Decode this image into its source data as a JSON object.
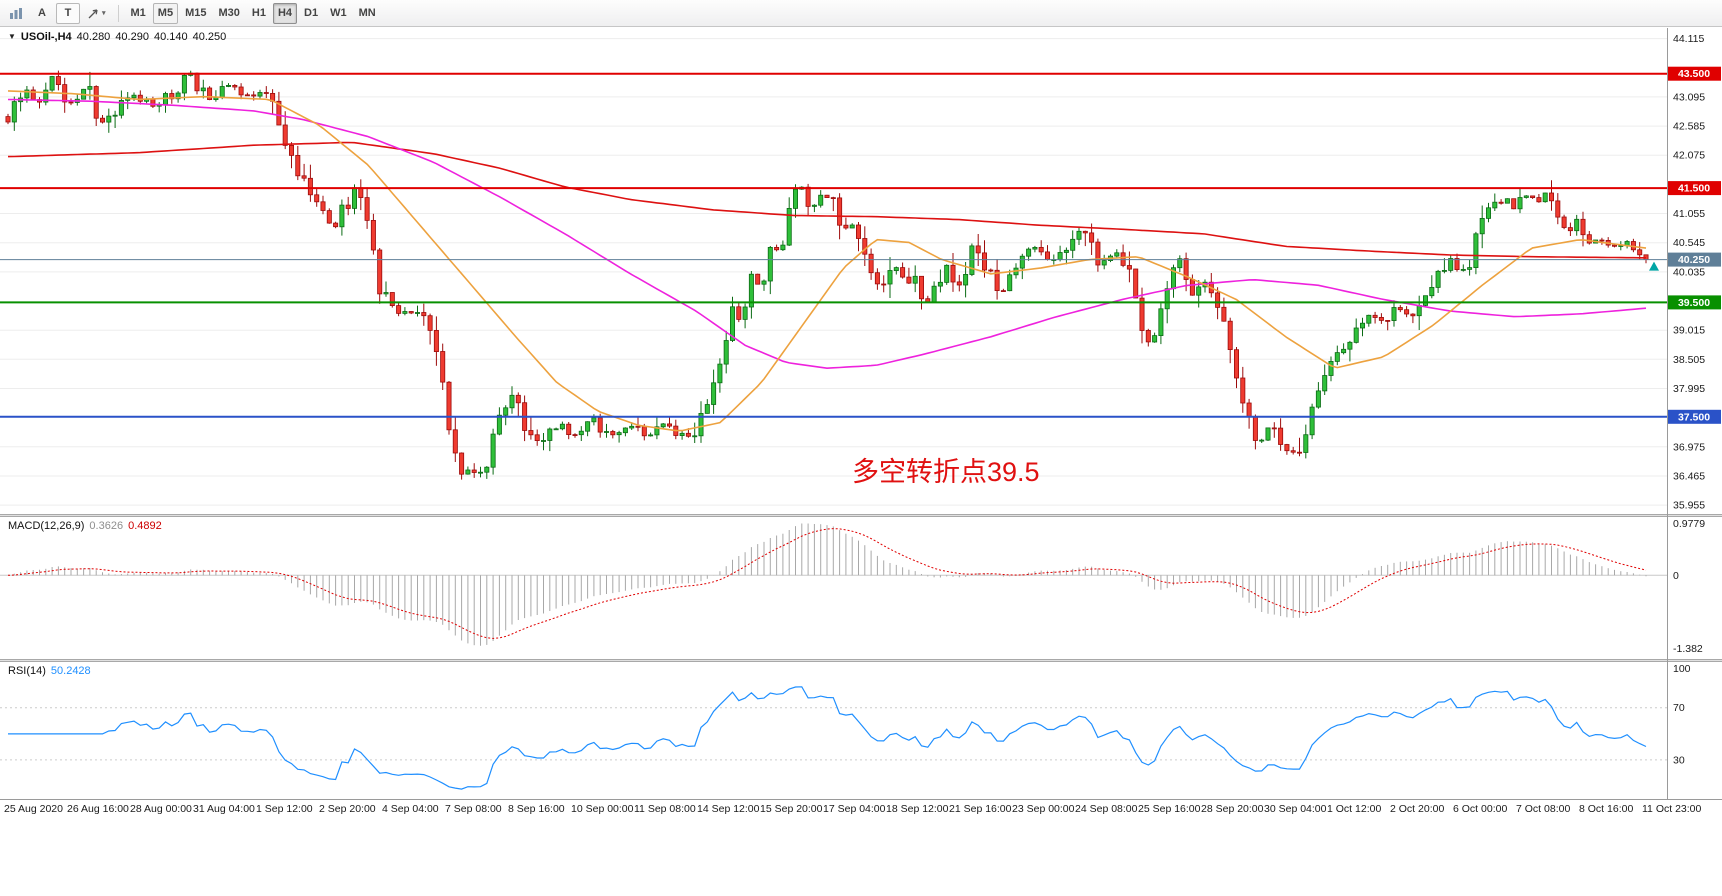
{
  "toolbar": {
    "tools": [
      {
        "name": "chart-tool",
        "label": ""
      },
      {
        "name": "arrow-tool",
        "label": "A"
      },
      {
        "name": "text-tool",
        "label": "T"
      },
      {
        "name": "objects-tool",
        "label": "",
        "caret": "▾"
      }
    ],
    "timeframes": [
      {
        "label": "M1",
        "state": "normal"
      },
      {
        "label": "M5",
        "state": "hover"
      },
      {
        "label": "M15",
        "state": "normal"
      },
      {
        "label": "M30",
        "state": "normal"
      },
      {
        "label": "H1",
        "state": "normal"
      },
      {
        "label": "H4",
        "state": "active"
      },
      {
        "label": "D1",
        "state": "normal"
      },
      {
        "label": "W1",
        "state": "normal"
      },
      {
        "label": "MN",
        "state": "normal"
      }
    ]
  },
  "main_panel": {
    "collapse_glyph": "▼",
    "symbol_period": "USOil-,H4",
    "open": "40.280",
    "high": "40.290",
    "low": "40.140",
    "close": "40.250",
    "annotation": {
      "text": "多空转折点39.5",
      "color": "#e01010",
      "t": 0.515,
      "price": 36.92,
      "font_size": 27
    }
  },
  "macd_panel": {
    "label": "MACD(12,26,9)",
    "main_value": "0.3626",
    "signal_value": "0.4892"
  },
  "rsi_panel": {
    "label": "RSI(14)",
    "value": "50.2428"
  },
  "chart_data": {
    "type": "candlestick",
    "symbol": "USOil-",
    "timeframe": "H4",
    "candles_count": 261,
    "last_price": 40.25,
    "main_ylim": [
      35.8,
      44.3
    ],
    "price_ticks": [
      44.115,
      43.095,
      42.585,
      42.075,
      41.055,
      40.545,
      40.035,
      39.015,
      38.505,
      37.995,
      36.975,
      36.465,
      35.955
    ],
    "levels": [
      {
        "value": 43.5,
        "label": "43.500",
        "color": "#e00000",
        "width": 2
      },
      {
        "value": 41.5,
        "label": "41.500",
        "color": "#e00000",
        "width": 2
      },
      {
        "value": 40.25,
        "label": "40.250",
        "color": "#5f7f98",
        "width": 1,
        "role": "current-price"
      },
      {
        "value": 39.5,
        "label": "39.500",
        "color": "#089000",
        "width": 2
      },
      {
        "value": 37.5,
        "label": "37.500",
        "color": "#2a52c8",
        "width": 2
      }
    ],
    "candle_colors": {
      "up_fill": "#2fbf3a",
      "up_stroke": "#0b6b14",
      "down_fill": "#ef3b30",
      "down_stroke": "#9c0b0b"
    },
    "price_path_anchors": [
      [
        0,
        42.75
      ],
      [
        0.008,
        43.2
      ],
      [
        0.018,
        43.05
      ],
      [
        0.028,
        43.45
      ],
      [
        0.038,
        43.0
      ],
      [
        0.048,
        43.3
      ],
      [
        0.058,
        42.55
      ],
      [
        0.068,
        42.9
      ],
      [
        0.077,
        43.1
      ],
      [
        0.09,
        42.95
      ],
      [
        0.1,
        43.15
      ],
      [
        0.112,
        43.48
      ],
      [
        0.122,
        43.05
      ],
      [
        0.133,
        43.28
      ],
      [
        0.145,
        43.12
      ],
      [
        0.158,
        43.25
      ],
      [
        0.168,
        42.4
      ],
      [
        0.178,
        41.8
      ],
      [
        0.19,
        41.3
      ],
      [
        0.2,
        40.85
      ],
      [
        0.208,
        41.3
      ],
      [
        0.214,
        41.55
      ],
      [
        0.222,
        40.7
      ],
      [
        0.228,
        39.6
      ],
      [
        0.238,
        39.35
      ],
      [
        0.25,
        39.25
      ],
      [
        0.26,
        39.0
      ],
      [
        0.268,
        37.6
      ],
      [
        0.275,
        36.45
      ],
      [
        0.28,
        36.7
      ],
      [
        0.287,
        36.25
      ],
      [
        0.294,
        36.9
      ],
      [
        0.3,
        37.45
      ],
      [
        0.306,
        38.0
      ],
      [
        0.314,
        37.45
      ],
      [
        0.324,
        37.0
      ],
      [
        0.335,
        37.35
      ],
      [
        0.346,
        37.2
      ],
      [
        0.357,
        37.45
      ],
      [
        0.368,
        37.15
      ],
      [
        0.38,
        37.4
      ],
      [
        0.39,
        37.1
      ],
      [
        0.4,
        37.35
      ],
      [
        0.41,
        37.15
      ],
      [
        0.42,
        37.3
      ],
      [
        0.428,
        37.8
      ],
      [
        0.436,
        38.55
      ],
      [
        0.442,
        39.35
      ],
      [
        0.448,
        39.15
      ],
      [
        0.454,
        40.0
      ],
      [
        0.46,
        39.75
      ],
      [
        0.466,
        40.55
      ],
      [
        0.472,
        40.3
      ],
      [
        0.478,
        41.2
      ],
      [
        0.483,
        41.55
      ],
      [
        0.49,
        41.2
      ],
      [
        0.497,
        41.42
      ],
      [
        0.504,
        41.28
      ],
      [
        0.511,
        40.7
      ],
      [
        0.517,
        40.9
      ],
      [
        0.525,
        40.0
      ],
      [
        0.532,
        39.7
      ],
      [
        0.543,
        40.1
      ],
      [
        0.553,
        39.85
      ],
      [
        0.563,
        39.45
      ],
      [
        0.573,
        40.2
      ],
      [
        0.581,
        39.8
      ],
      [
        0.589,
        40.5
      ],
      [
        0.597,
        40.05
      ],
      [
        0.608,
        39.7
      ],
      [
        0.617,
        40.1
      ],
      [
        0.627,
        40.45
      ],
      [
        0.637,
        40.15
      ],
      [
        0.647,
        40.45
      ],
      [
        0.656,
        40.75
      ],
      [
        0.666,
        40.15
      ],
      [
        0.676,
        40.4
      ],
      [
        0.684,
        40.2
      ],
      [
        0.691,
        39.15
      ],
      [
        0.697,
        38.7
      ],
      [
        0.705,
        39.45
      ],
      [
        0.715,
        40.25
      ],
      [
        0.723,
        39.6
      ],
      [
        0.73,
        39.9
      ],
      [
        0.739,
        39.45
      ],
      [
        0.747,
        38.6
      ],
      [
        0.756,
        37.45
      ],
      [
        0.764,
        37.05
      ],
      [
        0.771,
        37.3
      ],
      [
        0.779,
        36.9
      ],
      [
        0.788,
        36.95
      ],
      [
        0.796,
        37.55
      ],
      [
        0.805,
        38.4
      ],
      [
        0.813,
        38.6
      ],
      [
        0.822,
        39.05
      ],
      [
        0.83,
        39.3
      ],
      [
        0.839,
        39.2
      ],
      [
        0.848,
        39.45
      ],
      [
        0.856,
        39.3
      ],
      [
        0.864,
        39.6
      ],
      [
        0.872,
        39.9
      ],
      [
        0.88,
        40.3
      ],
      [
        0.886,
        40.05
      ],
      [
        0.892,
        40.2
      ],
      [
        0.898,
        40.85
      ],
      [
        0.905,
        41.1
      ],
      [
        0.912,
        41.3
      ],
      [
        0.919,
        41.15
      ],
      [
        0.926,
        41.4
      ],
      [
        0.933,
        41.25
      ],
      [
        0.94,
        41.45
      ],
      [
        0.946,
        41.05
      ],
      [
        0.952,
        40.7
      ],
      [
        0.958,
        40.9
      ],
      [
        0.964,
        40.5
      ],
      [
        0.971,
        40.62
      ],
      [
        0.979,
        40.42
      ],
      [
        0.987,
        40.55
      ],
      [
        1,
        40.25
      ]
    ],
    "moving_averages": [
      {
        "name": "ma-slow-red",
        "color": "#dd1111",
        "width": 1.6,
        "anchors": [
          [
            0,
            42.05
          ],
          [
            0.08,
            42.12
          ],
          [
            0.15,
            42.25
          ],
          [
            0.21,
            42.3
          ],
          [
            0.26,
            42.1
          ],
          [
            0.3,
            41.85
          ],
          [
            0.34,
            41.52
          ],
          [
            0.38,
            41.3
          ],
          [
            0.43,
            41.12
          ],
          [
            0.48,
            41.02
          ],
          [
            0.53,
            41.0
          ],
          [
            0.58,
            40.95
          ],
          [
            0.63,
            40.85
          ],
          [
            0.68,
            40.78
          ],
          [
            0.73,
            40.7
          ],
          [
            0.78,
            40.48
          ],
          [
            0.83,
            40.4
          ],
          [
            0.88,
            40.33
          ],
          [
            0.93,
            40.3
          ],
          [
            1,
            40.28
          ]
        ]
      },
      {
        "name": "ma-mid-magenta",
        "color": "#ee22dd",
        "width": 1.6,
        "anchors": [
          [
            0,
            43.05
          ],
          [
            0.05,
            43.02
          ],
          [
            0.1,
            42.95
          ],
          [
            0.15,
            42.85
          ],
          [
            0.18,
            42.7
          ],
          [
            0.22,
            42.4
          ],
          [
            0.26,
            41.95
          ],
          [
            0.3,
            41.35
          ],
          [
            0.34,
            40.7
          ],
          [
            0.38,
            40.0
          ],
          [
            0.42,
            39.35
          ],
          [
            0.45,
            38.75
          ],
          [
            0.475,
            38.45
          ],
          [
            0.5,
            38.35
          ],
          [
            0.53,
            38.4
          ],
          [
            0.56,
            38.6
          ],
          [
            0.6,
            38.9
          ],
          [
            0.64,
            39.25
          ],
          [
            0.68,
            39.55
          ],
          [
            0.72,
            39.8
          ],
          [
            0.76,
            39.9
          ],
          [
            0.8,
            39.8
          ],
          [
            0.84,
            39.55
          ],
          [
            0.88,
            39.35
          ],
          [
            0.92,
            39.25
          ],
          [
            0.96,
            39.3
          ],
          [
            1,
            39.4
          ]
        ]
      },
      {
        "name": "ma-fast-orange",
        "color": "#eda23f",
        "width": 1.6,
        "anchors": [
          [
            0,
            43.2
          ],
          [
            0.04,
            43.15
          ],
          [
            0.08,
            43.05
          ],
          [
            0.12,
            43.1
          ],
          [
            0.16,
            43.05
          ],
          [
            0.19,
            42.6
          ],
          [
            0.22,
            41.9
          ],
          [
            0.25,
            40.9
          ],
          [
            0.28,
            39.9
          ],
          [
            0.31,
            38.9
          ],
          [
            0.335,
            38.1
          ],
          [
            0.36,
            37.6
          ],
          [
            0.385,
            37.35
          ],
          [
            0.41,
            37.25
          ],
          [
            0.435,
            37.4
          ],
          [
            0.46,
            38.1
          ],
          [
            0.485,
            39.1
          ],
          [
            0.51,
            40.1
          ],
          [
            0.53,
            40.6
          ],
          [
            0.55,
            40.55
          ],
          [
            0.57,
            40.25
          ],
          [
            0.6,
            40.0
          ],
          [
            0.63,
            40.1
          ],
          [
            0.66,
            40.25
          ],
          [
            0.69,
            40.3
          ],
          [
            0.72,
            39.95
          ],
          [
            0.75,
            39.55
          ],
          [
            0.78,
            38.9
          ],
          [
            0.81,
            38.35
          ],
          [
            0.84,
            38.55
          ],
          [
            0.87,
            39.1
          ],
          [
            0.9,
            39.8
          ],
          [
            0.93,
            40.45
          ],
          [
            0.96,
            40.6
          ],
          [
            1,
            40.45
          ]
        ]
      }
    ],
    "macd": {
      "ylim": [
        -1.58,
        1.1
      ],
      "params": [
        12,
        26,
        9
      ],
      "histogram_color": "#a8a8a8",
      "signal_color": "#e00000",
      "ticks": [
        {
          "value": 0.9779,
          "label": "0.9779"
        },
        {
          "value": 0,
          "label": "0"
        },
        {
          "value": -1.382,
          "label": "-1.382"
        }
      ]
    },
    "rsi": {
      "ylim": [
        0,
        105
      ],
      "period": 14,
      "color": "#1f8fff",
      "levels": [
        70,
        30
      ],
      "ticks": [
        {
          "value": 100,
          "label": "100"
        },
        {
          "value": 70,
          "label": "70"
        },
        {
          "value": 30,
          "label": "30"
        }
      ]
    },
    "time_labels": [
      "25 Aug 2020",
      "26 Aug 16:00",
      "28 Aug 00:00",
      "31 Aug 04:00",
      "1 Sep 12:00",
      "2 Sep 20:00",
      "4 Sep 04:00",
      "7 Sep 08:00",
      "8 Sep 16:00",
      "10 Sep 00:00",
      "11 Sep 08:00",
      "14 Sep 12:00",
      "15 Sep 20:00",
      "17 Sep 04:00",
      "18 Sep 12:00",
      "21 Sep 16:00",
      "23 Sep 00:00",
      "24 Sep 08:00",
      "25 Sep 16:00",
      "28 Sep 20:00",
      "30 Sep 04:00",
      "1 Oct 12:00",
      "2 Oct 20:00",
      "6 Oct 00:00",
      "7 Oct 08:00",
      "8 Oct 16:00",
      "11 Oct 23:00"
    ]
  }
}
